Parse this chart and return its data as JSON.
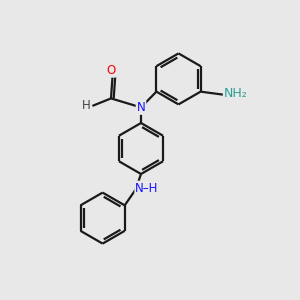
{
  "bg_color": "#e8e8e8",
  "bond_color": "#1a1a1a",
  "N_color": "#1414ff",
  "O_color": "#ff0000",
  "NH2_color": "#2aa198",
  "lw": 1.6,
  "double_lw": 1.6,
  "fs_label": 8.5,
  "xlim": [
    0,
    10
  ],
  "ylim": [
    0,
    10
  ],
  "ring_r": 0.85
}
